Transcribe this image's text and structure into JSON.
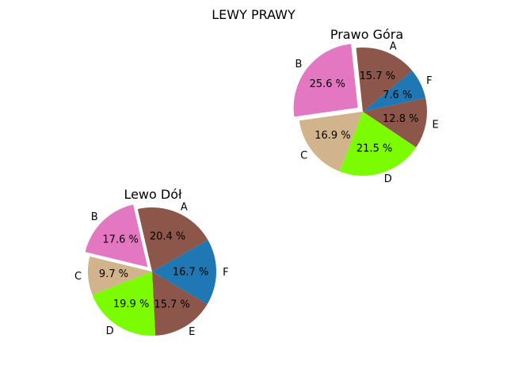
{
  "figure": {
    "suptitle": "LEWY PRAWY"
  },
  "chart_data": [
    {
      "type": "pie",
      "title": "Prawo Góra",
      "categories": [
        "A",
        "F",
        "E",
        "D",
        "C",
        "B"
      ],
      "values": [
        15.7,
        7.6,
        12.8,
        21.5,
        16.9,
        25.6
      ],
      "labels": [
        "15.7 %",
        "7.6 %",
        "12.8 %",
        "21.5 %",
        "16.9 %",
        "25.6 %"
      ],
      "colors": [
        "#8c564b",
        "#1f77b4",
        "#8c564b",
        "#7cfc00",
        "#d2b48c",
        "#e377c2"
      ],
      "explode": [
        0,
        0,
        0,
        0,
        0,
        0.1
      ],
      "start_angle_deg": 96,
      "direction": "clockwise"
    },
    {
      "type": "pie",
      "title": "Lewo Dół",
      "categories": [
        "A",
        "F",
        "E",
        "D",
        "C",
        "B"
      ],
      "values": [
        20.4,
        16.7,
        15.7,
        19.9,
        9.7,
        17.6
      ],
      "labels": [
        "20.4 %",
        "16.7 %",
        "15.7 %",
        "19.9 %",
        "9.7 %",
        "17.6 %"
      ],
      "colors": [
        "#8c564b",
        "#1f77b4",
        "#8c564b",
        "#7cfc00",
        "#d2b48c",
        "#e377c2"
      ],
      "explode": [
        0,
        0,
        0,
        0,
        0,
        0.1
      ],
      "start_angle_deg": 103,
      "direction": "clockwise"
    }
  ]
}
